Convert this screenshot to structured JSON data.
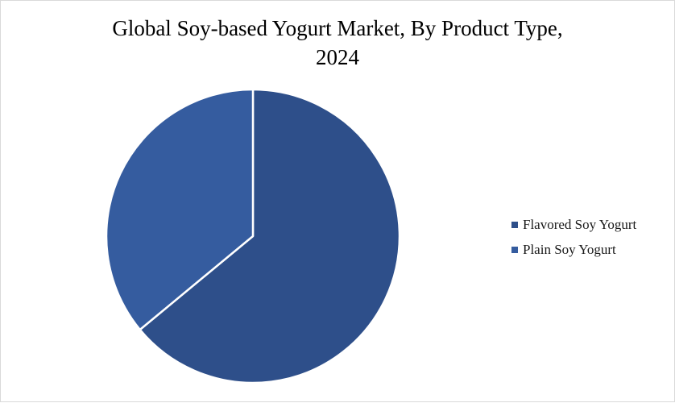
{
  "chart_data": {
    "type": "pie",
    "title_line1": "Global Soy-based Yogurt Market, By Product Type,",
    "title_line2": "2024",
    "legend_position": "right",
    "slices": [
      {
        "label": "Flavored Soy Yogurt",
        "value": 64,
        "color": "#2e4f8a"
      },
      {
        "label": "Plain Soy Yogurt",
        "value": 36,
        "color": "#355c9f"
      }
    ]
  }
}
